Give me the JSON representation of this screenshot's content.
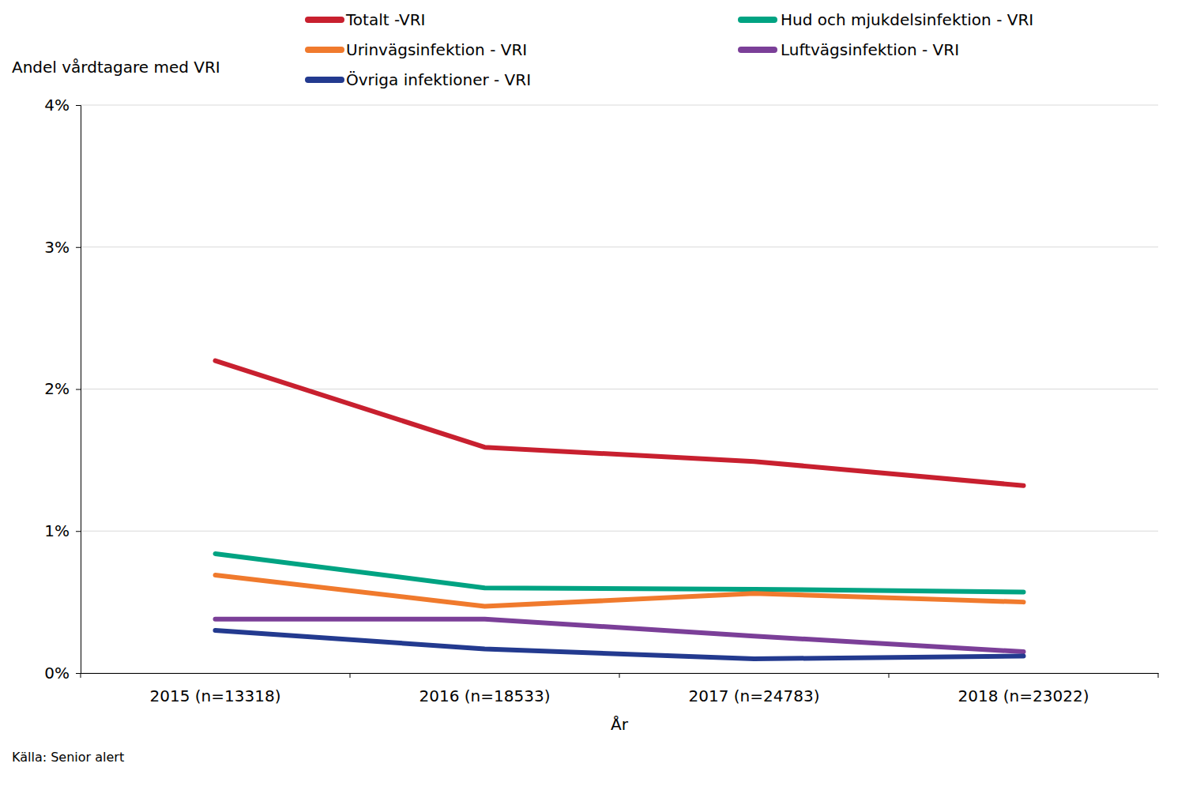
{
  "chart_data": {
    "type": "line",
    "y_label": "Andel vårdtagare med VRI",
    "x_label": "År",
    "source": "Källa: Senior alert",
    "categories": [
      "2015 (n=13318)",
      "2016 (n=18533)",
      "2017 (n=24783)",
      "2018 (n=23022)"
    ],
    "series": [
      {
        "name": "Totalt -VRI",
        "color": "#c8202f",
        "values": [
          2.2,
          1.59,
          1.49,
          1.32
        ]
      },
      {
        "name": "Hud och mjukdelsinfektion - VRI",
        "color": "#00a382",
        "values": [
          0.84,
          0.6,
          0.59,
          0.57
        ]
      },
      {
        "name": "Urinvägsinfektion - VRI",
        "color": "#f07a2d",
        "values": [
          0.69,
          0.47,
          0.56,
          0.5
        ]
      },
      {
        "name": "Luftvägsinfektion - VRI",
        "color": "#7b3f98",
        "values": [
          0.38,
          0.38,
          0.26,
          0.15
        ]
      },
      {
        "name": "Övriga infektioner - VRI",
        "color": "#233a8f",
        "values": [
          0.3,
          0.17,
          0.1,
          0.12
        ]
      }
    ],
    "ylim": [
      0,
      4
    ],
    "yticks": [
      {
        "value": 0,
        "label": "0%"
      },
      {
        "value": 1,
        "label": "1%"
      },
      {
        "value": 2,
        "label": "2%"
      },
      {
        "value": 3,
        "label": "3%"
      },
      {
        "value": 4,
        "label": "4%"
      }
    ],
    "grid": true,
    "legend": "top"
  }
}
